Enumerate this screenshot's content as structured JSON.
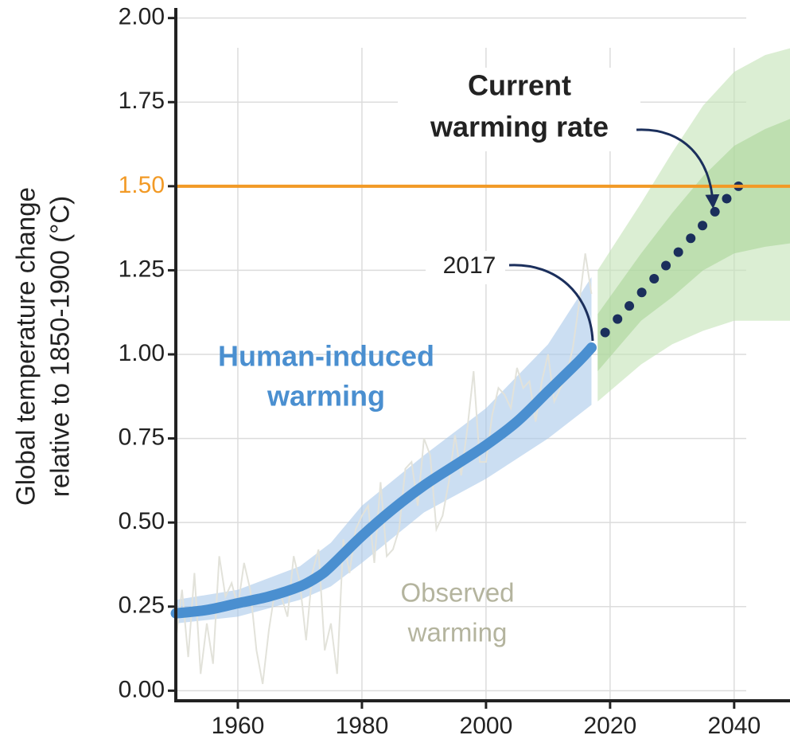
{
  "chart_data": {
    "type": "line",
    "ylabel": [
      "Global temperature change",
      "relative to 1850-1900 (°C)"
    ],
    "xlim": [
      1950,
      2049
    ],
    "ylim": [
      -0.03,
      2.03
    ],
    "xticks": [
      1960,
      1980,
      2000,
      2020,
      2040
    ],
    "yticks": [
      {
        "value": 0,
        "label": "0.00"
      },
      {
        "value": 0.25,
        "label": "0.25"
      },
      {
        "value": 0.5,
        "label": "0.50"
      },
      {
        "value": 0.75,
        "label": "0.75"
      },
      {
        "value": 1,
        "label": "1.00"
      },
      {
        "value": 1.25,
        "label": "1.25"
      },
      {
        "value": 1.5,
        "label": "1.50"
      },
      {
        "value": 1.75,
        "label": "1.75"
      },
      {
        "value": 2,
        "label": "2.00"
      }
    ],
    "grid": true,
    "reference_line": {
      "value": 1.5,
      "color": "#f29a26"
    },
    "bands": [
      {
        "x": [
          1950,
          1960,
          1970,
          1975,
          1980,
          1990,
          2000,
          2010,
          2017
        ],
        "lower": [
          0.2,
          0.22,
          0.27,
          0.31,
          0.38,
          0.53,
          0.63,
          0.75,
          0.85
        ],
        "upper": [
          0.27,
          0.3,
          0.37,
          0.44,
          0.55,
          0.7,
          0.84,
          1.03,
          1.23
        ],
        "color": "#a9c8ea",
        "opacity": 0.6
      },
      {
        "x": [
          2018,
          2025,
          2030,
          2035,
          2040,
          2045,
          2049
        ],
        "lower": [
          0.86,
          0.97,
          1.03,
          1.07,
          1.1,
          1.1,
          1.1
        ],
        "upper": [
          1.25,
          1.45,
          1.6,
          1.74,
          1.84,
          1.89,
          1.91
        ],
        "color": "#c3e2b5",
        "opacity": 0.6
      },
      {
        "x": [
          2018,
          2025,
          2030,
          2035,
          2040,
          2045,
          2049
        ],
        "lower": [
          0.95,
          1.1,
          1.17,
          1.25,
          1.3,
          1.32,
          1.33
        ],
        "upper": [
          1.12,
          1.3,
          1.42,
          1.53,
          1.62,
          1.67,
          1.7
        ],
        "color": "#a6d494",
        "opacity": 0.55
      }
    ],
    "series": [
      {
        "label": [
          "Observed",
          "warming"
        ],
        "style": "thin",
        "color": "#e2e2da",
        "label_color": "#b4b49e",
        "x": [
          1950,
          1951,
          1952,
          1953,
          1954,
          1955,
          1956,
          1957,
          1958,
          1959,
          1960,
          1961,
          1962,
          1963,
          1964,
          1965,
          1966,
          1967,
          1968,
          1969,
          1970,
          1971,
          1972,
          1973,
          1974,
          1975,
          1976,
          1977,
          1978,
          1979,
          1980,
          1981,
          1982,
          1983,
          1984,
          1985,
          1986,
          1987,
          1988,
          1989,
          1990,
          1991,
          1992,
          1993,
          1994,
          1995,
          1996,
          1997,
          1998,
          1999,
          2000,
          2001,
          2002,
          2003,
          2004,
          2005,
          2006,
          2007,
          2008,
          2009,
          2010,
          2011,
          2012,
          2013,
          2014,
          2015,
          2016,
          2017
        ],
        "values": [
          0.15,
          0.3,
          0.1,
          0.35,
          0.05,
          0.2,
          0.08,
          0.4,
          0.28,
          0.32,
          0.25,
          0.38,
          0.3,
          0.12,
          0.02,
          0.18,
          0.3,
          0.28,
          0.22,
          0.4,
          0.32,
          0.15,
          0.35,
          0.42,
          0.12,
          0.2,
          0.05,
          0.45,
          0.35,
          0.48,
          0.52,
          0.55,
          0.38,
          0.62,
          0.4,
          0.42,
          0.48,
          0.66,
          0.68,
          0.55,
          0.75,
          0.7,
          0.48,
          0.52,
          0.62,
          0.76,
          0.64,
          0.78,
          0.95,
          0.68,
          0.68,
          0.82,
          0.9,
          0.88,
          0.84,
          0.96,
          0.9,
          0.92,
          0.8,
          0.92,
          1.0,
          0.86,
          0.9,
          0.94,
          1.02,
          1.15,
          1.3,
          1.18
        ]
      },
      {
        "label": [
          "Human-induced",
          "warming"
        ],
        "style": "thick",
        "color": "#4a8fd0",
        "label_color": "#4a8fd0",
        "x": [
          1950,
          1955,
          1960,
          1965,
          1970,
          1973,
          1975,
          1980,
          1985,
          1990,
          1995,
          2000,
          2005,
          2010,
          2015,
          2017
        ],
        "values": [
          0.23,
          0.24,
          0.26,
          0.28,
          0.31,
          0.34,
          0.37,
          0.46,
          0.54,
          0.61,
          0.67,
          0.73,
          0.8,
          0.89,
          0.98,
          1.02
        ]
      },
      {
        "style": "dots",
        "color": "#1b2f5c",
        "x": [
          2019.2,
          2021.2,
          2023.1,
          2025.1,
          2027.1,
          2029.0,
          2031.0,
          2033.0,
          2034.9,
          2036.9,
          2038.8,
          2040.7
        ],
        "values": [
          1.065,
          1.105,
          1.144,
          1.184,
          1.225,
          1.264,
          1.304,
          1.345,
          1.383,
          1.424,
          1.463,
          1.5
        ]
      }
    ],
    "annotations": [
      {
        "lines": [
          "Current",
          "warming rate"
        ]
      },
      {
        "lines": [
          "2017"
        ]
      }
    ]
  }
}
